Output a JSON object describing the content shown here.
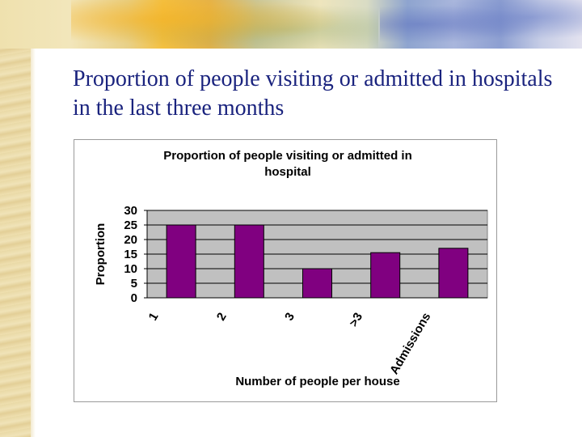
{
  "slide": {
    "title": "Proportion of people visiting or admitted in hospitals in the last three months"
  },
  "colors": {
    "bar": "#800080",
    "plot_background": "#c0c0c0",
    "gridline": "#000000",
    "title_text": "#1a237e"
  },
  "chart_data": {
    "type": "bar",
    "title": "Proportion of people visiting or admitted in hospital",
    "xlabel": "Number of people per house",
    "ylabel": "Proportion",
    "categories": [
      "1",
      "2",
      "3",
      ">3",
      "Admissions"
    ],
    "values": [
      25,
      25,
      10,
      15.5,
      17
    ],
    "ylim": [
      0,
      30
    ],
    "yticks": [
      0,
      5,
      10,
      15,
      20,
      25,
      30
    ],
    "grid": true,
    "legend": "none"
  }
}
